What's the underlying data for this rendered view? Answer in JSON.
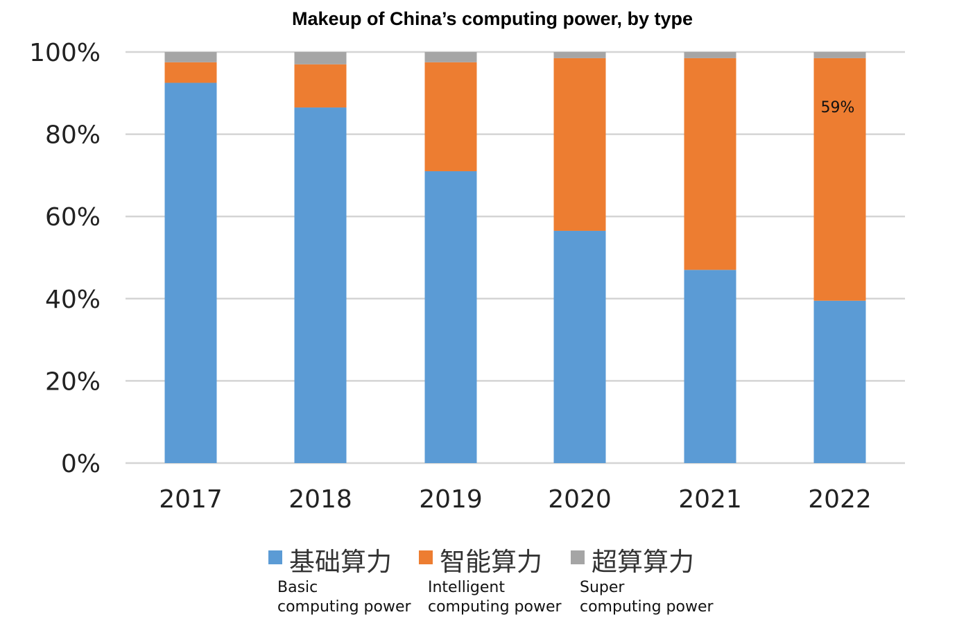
{
  "chart_data": {
    "type": "bar",
    "stacked": true,
    "title": "Makeup of China’s computing power, by type",
    "categories": [
      "2017",
      "2018",
      "2019",
      "2020",
      "2021",
      "2022"
    ],
    "ylim": [
      0,
      100
    ],
    "yticks": [
      "0%",
      "20%",
      "40%",
      "60%",
      "80%",
      "100%"
    ],
    "grid": true,
    "legend_position": "bottom",
    "series": [
      {
        "name": "基础算力",
        "name_en_line1": "Basic",
        "name_en_line2": "computing power",
        "color": "#5b9bd5",
        "values": [
          92.5,
          86.5,
          71,
          56.5,
          47,
          39.5
        ]
      },
      {
        "name": "智能算力",
        "name_en_line1": "Intelligent",
        "name_en_line2": "computing power",
        "color": "#ed7d31",
        "values": [
          5,
          10.5,
          26.5,
          42,
          51.5,
          59
        ]
      },
      {
        "name": "超算算力",
        "name_en_line1": "Super",
        "name_en_line2": "computing power",
        "color": "#a5a5a5",
        "values": [
          2.5,
          3,
          2.5,
          1.5,
          1.5,
          1.5
        ]
      }
    ],
    "annotations": [
      {
        "category": "2022",
        "series": "智能算力",
        "text": "59%"
      }
    ]
  }
}
